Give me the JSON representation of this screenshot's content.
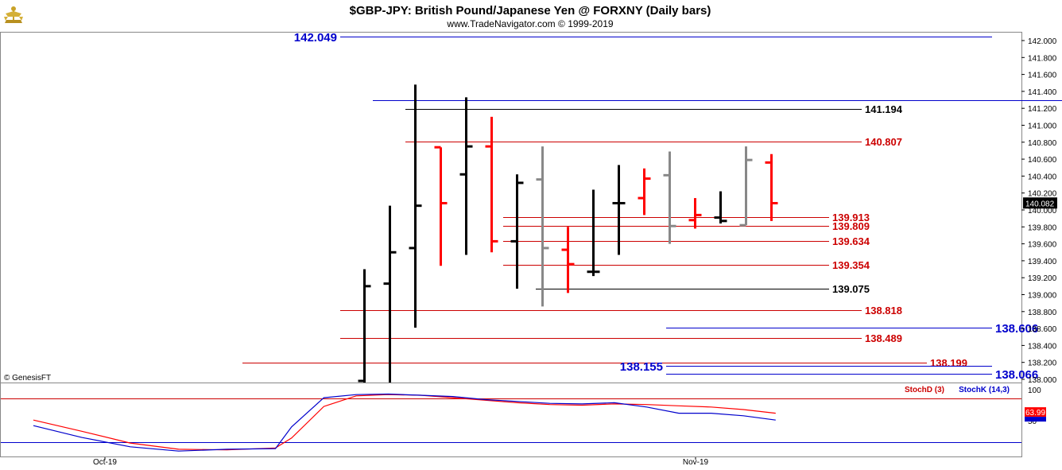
{
  "header": {
    "title": "$GBP-JPY:  British Pound/Japanese Yen @ FORXNY  (Daily bars)",
    "subtitle": "www.TradeNavigator.com © 1999-2019",
    "logo_icon": "trade-navigator-logo-icon"
  },
  "copyright": "© GenesisFT",
  "colors": {
    "bar_black": "#000000",
    "bar_red": "#ff0000",
    "bar_gray": "#888888",
    "level_red": "#cc0000",
    "level_blue": "#0000cc",
    "level_black": "#000000",
    "stoch_d": "#ff0000",
    "stoch_k": "#0000cc",
    "last_price_bg": "#000000"
  },
  "chart_data": [
    {
      "type": "ohlc",
      "panel": "price",
      "ylim": [
        137.8,
        142.2
      ],
      "y_ticks": [
        "142.000",
        "141.800",
        "141.600",
        "141.400",
        "141.200",
        "141.000",
        "140.800",
        "140.600",
        "140.400",
        "140.200",
        "140.000",
        "139.800",
        "139.600",
        "139.400",
        "139.200",
        "139.000",
        "138.800",
        "138.600",
        "138.400",
        "138.200",
        "138.000"
      ],
      "last_price": "140.082",
      "bars": [
        {
          "o": 137.8,
          "h": 139.3,
          "l": 137.8,
          "c": 139.1,
          "color": "black"
        },
        {
          "o": 139.13,
          "h": 140.05,
          "l": 137.8,
          "c": 139.5,
          "color": "black"
        },
        {
          "o": 139.55,
          "h": 141.48,
          "l": 138.61,
          "c": 140.05,
          "color": "black"
        },
        {
          "o": 140.74,
          "h": 140.74,
          "l": 139.34,
          "c": 140.08,
          "color": "red"
        },
        {
          "o": 140.42,
          "h": 141.33,
          "l": 139.47,
          "c": 140.75,
          "color": "black"
        },
        {
          "o": 140.75,
          "h": 141.1,
          "l": 139.5,
          "c": 139.63,
          "color": "red"
        },
        {
          "o": 139.63,
          "h": 140.42,
          "l": 139.07,
          "c": 140.32,
          "color": "black"
        },
        {
          "o": 140.36,
          "h": 140.75,
          "l": 138.86,
          "c": 139.55,
          "color": "gray"
        },
        {
          "o": 139.53,
          "h": 139.8,
          "l": 139.02,
          "c": 139.36,
          "color": "red"
        },
        {
          "o": 139.27,
          "h": 140.24,
          "l": 139.22,
          "c": 139.27,
          "color": "black"
        },
        {
          "o": 140.08,
          "h": 140.53,
          "l": 139.47,
          "c": 140.08,
          "color": "black"
        },
        {
          "o": 140.14,
          "h": 140.49,
          "l": 139.94,
          "c": 140.37,
          "color": "red"
        },
        {
          "o": 140.41,
          "h": 140.69,
          "l": 139.6,
          "c": 139.81,
          "color": "gray"
        },
        {
          "o": 139.88,
          "h": 140.14,
          "l": 139.78,
          "c": 139.94,
          "color": "red"
        },
        {
          "o": 139.91,
          "h": 140.22,
          "l": 139.84,
          "c": 139.87,
          "color": "black"
        },
        {
          "o": 139.82,
          "h": 140.75,
          "l": 139.82,
          "c": 140.59,
          "color": "gray"
        },
        {
          "o": 140.56,
          "h": 140.66,
          "l": 139.87,
          "c": 140.08,
          "color": "red"
        }
      ],
      "levels": [
        {
          "label": "142.049",
          "value": 142.049,
          "color": "blue",
          "from": 8,
          "to": 28,
          "label_pos": "left"
        },
        {
          "label": "141.295",
          "value": 141.295,
          "color": "blue",
          "from": 9,
          "to": 31,
          "label_pos": "right"
        },
        {
          "label": "141.194",
          "value": 141.194,
          "color": "black",
          "from": 10,
          "to": 24,
          "label_pos": "right"
        },
        {
          "label": "140.807",
          "value": 140.807,
          "color": "red",
          "from": 10,
          "to": 24,
          "label_pos": "right"
        },
        {
          "label": "139.913",
          "value": 139.913,
          "color": "red",
          "from": 13,
          "to": 23,
          "label_pos": "right"
        },
        {
          "label": "139.809",
          "value": 139.809,
          "color": "red",
          "from": 13,
          "to": 23,
          "label_pos": "right"
        },
        {
          "label": "139.634",
          "value": 139.634,
          "color": "red",
          "from": 13,
          "to": 23,
          "label_pos": "right"
        },
        {
          "label": "139.354",
          "value": 139.354,
          "color": "red",
          "from": 13,
          "to": 23,
          "label_pos": "right"
        },
        {
          "label": "139.075",
          "value": 139.075,
          "color": "black",
          "from": 14,
          "to": 23,
          "label_pos": "right"
        },
        {
          "label": "138.818",
          "value": 138.818,
          "color": "red",
          "from": 8,
          "to": 24,
          "label_pos": "right"
        },
        {
          "label": "138.606",
          "value": 138.606,
          "color": "blue",
          "from": 18,
          "to": 28,
          "label_pos": "right"
        },
        {
          "label": "138.489",
          "value": 138.489,
          "color": "red",
          "from": 8,
          "to": 24,
          "label_pos": "right"
        },
        {
          "label": "138.199",
          "value": 138.199,
          "color": "red",
          "from": 5,
          "to": 26,
          "label_pos": "right"
        },
        {
          "label": "138.155",
          "value": 138.155,
          "color": "blue",
          "from": 18,
          "to": 28,
          "label_pos": "left"
        },
        {
          "label": "138.066",
          "value": 138.066,
          "color": "blue",
          "from": 18,
          "to": 28,
          "label_pos": "right"
        }
      ]
    },
    {
      "type": "line",
      "panel": "stochastic",
      "ylim": [
        0,
        100
      ],
      "y_ticks": [
        "100",
        "50"
      ],
      "legend": [
        "StochD (3)",
        "StochK (14,3)"
      ],
      "value_badge": "63.99",
      "x_labels": [
        "Oct-19",
        "Nov-19"
      ],
      "series": [
        {
          "name": "StochD (3)",
          "color": "red",
          "x": [
            0,
            3,
            6,
            9,
            12,
            15,
            16,
            18,
            20,
            22,
            24,
            26,
            28,
            30,
            32,
            34,
            36,
            38,
            40,
            42,
            44,
            46
          ],
          "values": [
            51,
            33,
            14,
            4,
            3,
            6,
            22,
            73,
            90,
            92,
            91,
            87,
            83,
            79,
            76,
            75,
            77,
            76,
            74,
            72,
            68,
            62
          ]
        },
        {
          "name": "StochK (14,3)",
          "color": "blue",
          "x": [
            0,
            3,
            6,
            9,
            12,
            15,
            16,
            18,
            20,
            22,
            24,
            26,
            28,
            30,
            32,
            34,
            36,
            38,
            40,
            42,
            44,
            46
          ],
          "values": [
            42,
            23,
            8,
            1,
            4,
            5,
            40,
            87,
            92,
            93,
            91,
            89,
            84,
            81,
            78,
            77,
            79,
            72,
            62,
            62,
            58,
            51
          ]
        }
      ]
    }
  ]
}
